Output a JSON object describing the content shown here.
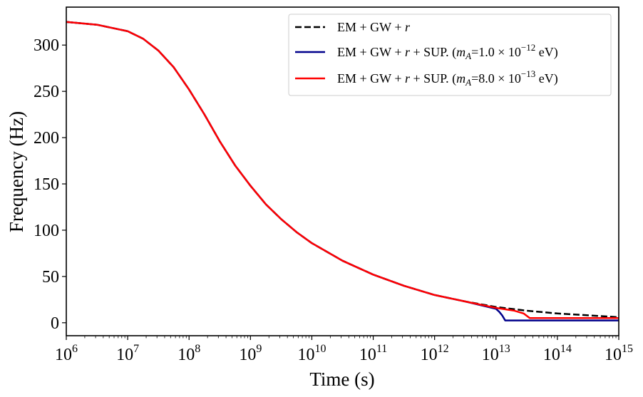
{
  "chart_data": {
    "type": "line",
    "xscale": "log",
    "xlim": [
      1000000.0,
      1000000000000000.0
    ],
    "ylim": [
      -14,
      341
    ],
    "xlabel": "Time (s)",
    "ylabel": "Frequency (Hz)",
    "legend_position": "top-right",
    "x_ticks": [
      {
        "base": "10",
        "exp": "6",
        "value": 1000000.0
      },
      {
        "base": "10",
        "exp": "7",
        "value": 10000000.0
      },
      {
        "base": "10",
        "exp": "8",
        "value": 100000000.0
      },
      {
        "base": "10",
        "exp": "9",
        "value": 1000000000.0
      },
      {
        "base": "10",
        "exp": "10",
        "value": 10000000000.0
      },
      {
        "base": "10",
        "exp": "11",
        "value": 100000000000.0
      },
      {
        "base": "10",
        "exp": "12",
        "value": 1000000000000.0
      },
      {
        "base": "10",
        "exp": "13",
        "value": 10000000000000.0
      },
      {
        "base": "10",
        "exp": "14",
        "value": 100000000000000.0
      },
      {
        "base": "10",
        "exp": "15",
        "value": 1000000000000000.0
      }
    ],
    "y_ticks": [
      {
        "label": "0",
        "value": 0
      },
      {
        "label": "50",
        "value": 50
      },
      {
        "label": "100",
        "value": 100
      },
      {
        "label": "150",
        "value": 150
      },
      {
        "label": "200",
        "value": 200
      },
      {
        "label": "250",
        "value": 250
      },
      {
        "label": "300",
        "value": 300
      }
    ],
    "series": [
      {
        "name": "EM + GW + r",
        "legend": {
          "prefix": "EM + GW + ",
          "var": "r"
        },
        "color": "#000000",
        "dashed": true,
        "x_log10": [
          6,
          6.5,
          7,
          7.25,
          7.5,
          7.75,
          8,
          8.25,
          8.5,
          8.75,
          9,
          9.25,
          9.5,
          9.75,
          10,
          10.5,
          11,
          11.5,
          12,
          12.5,
          13,
          13.5,
          14,
          14.5,
          15
        ],
        "y": [
          325,
          322,
          315,
          307,
          294,
          276,
          252,
          225,
          196,
          170,
          148,
          128,
          112,
          98,
          86,
          67,
          52,
          40,
          30,
          23,
          17,
          13,
          10,
          8,
          6
        ]
      },
      {
        "name": "EM + GW + r + SUP. (mA=1.0 × 10^-12 eV)",
        "legend": {
          "prefix": "EM + GW + ",
          "var": "r",
          "mid": " + SUP. (",
          "mvar": "m",
          "msub": "A",
          "val": "=1.0 × 10",
          "exp": "−12",
          "suffix": " eV)"
        },
        "color": "#00008b",
        "dashed": false,
        "x_log10": [
          6,
          6.5,
          7,
          7.25,
          7.5,
          7.75,
          8,
          8.25,
          8.5,
          8.75,
          9,
          9.25,
          9.5,
          9.75,
          10,
          10.5,
          11,
          11.5,
          12,
          12.5,
          13,
          13.05,
          13.1,
          13.15,
          15
        ],
        "y": [
          325,
          322,
          315,
          307,
          294,
          276,
          252,
          225,
          196,
          170,
          148,
          128,
          112,
          98,
          86,
          67,
          52,
          40,
          30,
          23,
          15,
          12,
          8,
          2.5,
          2.5
        ]
      },
      {
        "name": "EM + GW + r + SUP. (mA=8.0 × 10^-13 eV)",
        "legend": {
          "prefix": "EM + GW + ",
          "var": "r",
          "mid": " + SUP. (",
          "mvar": "m",
          "msub": "A",
          "val": "=8.0 × 10",
          "exp": "−13",
          "suffix": " eV)"
        },
        "color": "#ff0000",
        "dashed": false,
        "x_log10": [
          6,
          6.5,
          7,
          7.25,
          7.5,
          7.75,
          8,
          8.25,
          8.5,
          8.75,
          9,
          9.25,
          9.5,
          9.75,
          10,
          10.5,
          11,
          11.5,
          12,
          12.5,
          13,
          13.3,
          13.45,
          13.55,
          15
        ],
        "y": [
          325,
          322,
          315,
          307,
          294,
          276,
          252,
          225,
          196,
          170,
          148,
          128,
          112,
          98,
          86,
          67,
          52,
          40,
          30,
          23,
          16,
          13,
          10,
          5,
          5
        ]
      }
    ]
  }
}
